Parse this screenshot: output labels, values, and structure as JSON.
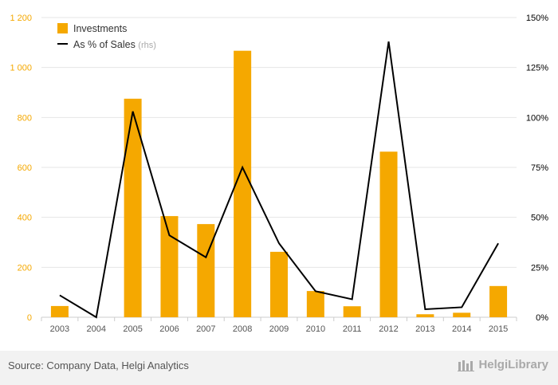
{
  "chart_data": {
    "type": "bar+line",
    "categories": [
      "2003",
      "2004",
      "2005",
      "2006",
      "2007",
      "2008",
      "2009",
      "2010",
      "2011",
      "2012",
      "2013",
      "2014",
      "2015"
    ],
    "series": [
      {
        "name": "Investments",
        "type": "bar",
        "axis": "left",
        "color": "#f5a800",
        "values": [
          45,
          0,
          875,
          405,
          373,
          1067,
          262,
          105,
          44,
          663,
          12,
          18,
          125
        ]
      },
      {
        "name": "As % of Sales",
        "name_suffix": "(rhs)",
        "type": "line",
        "axis": "right",
        "color": "#000000",
        "values": [
          11,
          0,
          103,
          41,
          30,
          75,
          37,
          13,
          9,
          138,
          4,
          5,
          37
        ]
      }
    ],
    "y_left": {
      "ticks": [
        "0",
        "200",
        "400",
        "600",
        "800",
        "1 000",
        "1 200"
      ],
      "min": 0,
      "max": 1200,
      "step": 200,
      "color": "#f5a800"
    },
    "y_right": {
      "ticks": [
        "0%",
        "25%",
        "50%",
        "75%",
        "100%",
        "125%",
        "150%"
      ],
      "min": 0,
      "max": 150,
      "step": 25,
      "color": "#000000"
    },
    "grid": true,
    "legend_position": "top-left"
  },
  "footer": {
    "source": "Source: Company Data, Helgi Analytics",
    "brand": "HelgiLibrary"
  }
}
